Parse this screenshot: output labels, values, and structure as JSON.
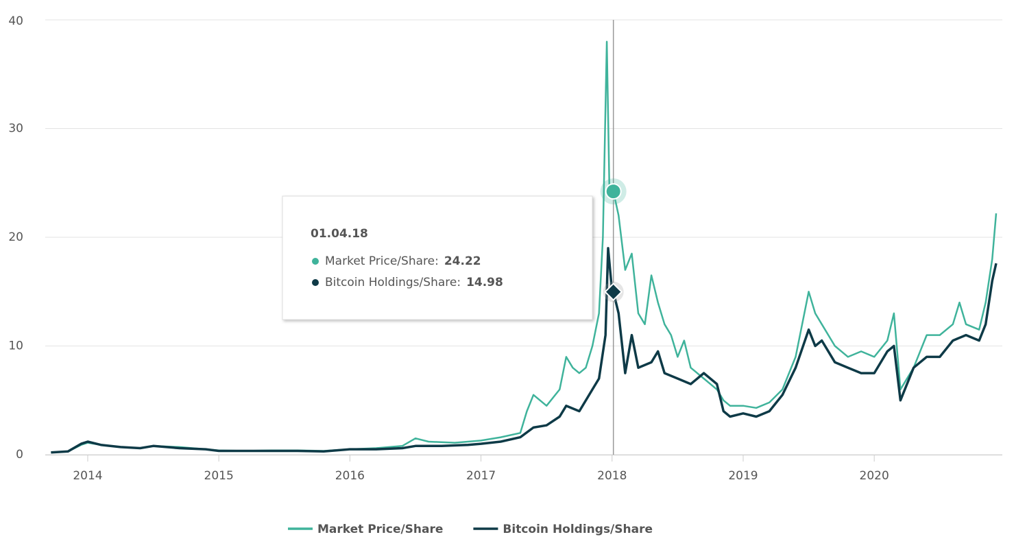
{
  "chart_data": {
    "type": "line",
    "xlim": [
      2013.676,
      2020.977
    ],
    "xticks": [
      2014,
      2015,
      2016,
      2017,
      2018,
      2019,
      2020
    ],
    "ylim": [
      0,
      40
    ],
    "yticks": [
      0,
      10,
      20,
      30,
      40
    ],
    "grid": true,
    "legend": "bottom",
    "series": [
      {
        "name": "Market Price/Share",
        "color": "#3fb39b",
        "x": [
          2013.72,
          2013.85,
          2013.95,
          2014.0,
          2014.1,
          2014.25,
          2014.4,
          2014.5,
          2014.7,
          2014.9,
          2015.0,
          2015.2,
          2015.4,
          2015.6,
          2015.8,
          2016.0,
          2016.2,
          2016.4,
          2016.5,
          2016.6,
          2016.8,
          2017.0,
          2017.15,
          2017.3,
          2017.35,
          2017.4,
          2017.5,
          2017.6,
          2017.65,
          2017.7,
          2017.75,
          2017.8,
          2017.85,
          2017.9,
          2017.93,
          2017.96,
          2017.98,
          2018.01,
          2018.05,
          2018.1,
          2018.15,
          2018.2,
          2018.25,
          2018.3,
          2018.35,
          2018.4,
          2018.45,
          2018.5,
          2018.55,
          2018.6,
          2018.7,
          2018.8,
          2018.85,
          2018.9,
          2019.0,
          2019.1,
          2019.2,
          2019.3,
          2019.4,
          2019.5,
          2019.55,
          2019.6,
          2019.7,
          2019.8,
          2019.9,
          2020.0,
          2020.1,
          2020.15,
          2020.2,
          2020.3,
          2020.4,
          2020.5,
          2020.6,
          2020.65,
          2020.7,
          2020.8,
          2020.85,
          2020.9,
          2020.93
        ],
        "values": [
          0.2,
          0.3,
          0.9,
          1.1,
          0.9,
          0.7,
          0.6,
          0.8,
          0.7,
          0.5,
          0.4,
          0.35,
          0.4,
          0.4,
          0.35,
          0.5,
          0.6,
          0.8,
          1.5,
          1.2,
          1.1,
          1.3,
          1.6,
          2.0,
          4.0,
          5.5,
          4.5,
          6.0,
          9.0,
          8.0,
          7.5,
          8.0,
          10.0,
          13.0,
          20.0,
          38.0,
          24.0,
          24.22,
          22.0,
          17.0,
          18.5,
          13.0,
          12.0,
          16.5,
          14.0,
          12.0,
          11.0,
          9.0,
          10.5,
          8.0,
          7.0,
          6.0,
          5.0,
          4.5,
          4.5,
          4.3,
          4.8,
          6.0,
          9.0,
          15.0,
          13.0,
          12.0,
          10.0,
          9.0,
          9.5,
          9.0,
          10.5,
          13.0,
          6.0,
          8.0,
          11.0,
          11.0,
          12.0,
          14.0,
          12.0,
          11.5,
          14.0,
          18.0,
          22.2
        ]
      },
      {
        "name": "Bitcoin Holdings/Share",
        "color": "#0e3a47",
        "x": [
          2013.72,
          2013.85,
          2013.95,
          2014.0,
          2014.1,
          2014.25,
          2014.4,
          2014.5,
          2014.7,
          2014.9,
          2015.0,
          2015.2,
          2015.4,
          2015.6,
          2015.8,
          2016.0,
          2016.2,
          2016.4,
          2016.5,
          2016.7,
          2016.9,
          2017.0,
          2017.15,
          2017.3,
          2017.4,
          2017.5,
          2017.6,
          2017.65,
          2017.75,
          2017.85,
          2017.9,
          2017.95,
          2017.97,
          2018.0,
          2018.01,
          2018.05,
          2018.1,
          2018.15,
          2018.2,
          2018.3,
          2018.35,
          2018.4,
          2018.5,
          2018.6,
          2018.7,
          2018.8,
          2018.85,
          2018.9,
          2019.0,
          2019.1,
          2019.2,
          2019.3,
          2019.4,
          2019.5,
          2019.55,
          2019.6,
          2019.7,
          2019.8,
          2019.9,
          2020.0,
          2020.1,
          2020.15,
          2020.2,
          2020.3,
          2020.4,
          2020.5,
          2020.6,
          2020.7,
          2020.8,
          2020.85,
          2020.9,
          2020.93
        ],
        "values": [
          0.2,
          0.3,
          1.0,
          1.2,
          0.9,
          0.7,
          0.6,
          0.8,
          0.6,
          0.5,
          0.35,
          0.35,
          0.35,
          0.35,
          0.3,
          0.5,
          0.5,
          0.6,
          0.8,
          0.8,
          0.9,
          1.0,
          1.2,
          1.6,
          2.5,
          2.7,
          3.5,
          4.5,
          4.0,
          6.0,
          7.0,
          11.0,
          19.0,
          15.0,
          14.98,
          13.0,
          7.5,
          11.0,
          8.0,
          8.5,
          9.5,
          7.5,
          7.0,
          6.5,
          7.5,
          6.5,
          4.0,
          3.5,
          3.8,
          3.5,
          4.0,
          5.5,
          8.0,
          11.5,
          10.0,
          10.5,
          8.5,
          8.0,
          7.5,
          7.5,
          9.5,
          10.0,
          5.0,
          8.0,
          9.0,
          9.0,
          10.5,
          11.0,
          10.5,
          12.0,
          16.0,
          17.6
        ]
      }
    ],
    "tooltip": {
      "title": "01.04.18",
      "x": 2018.01,
      "rows": [
        {
          "label": "Market Price/Share:",
          "value": 24.22
        },
        {
          "label": "Bitcoin Holdings/Share:",
          "value": 14.98
        }
      ]
    }
  }
}
